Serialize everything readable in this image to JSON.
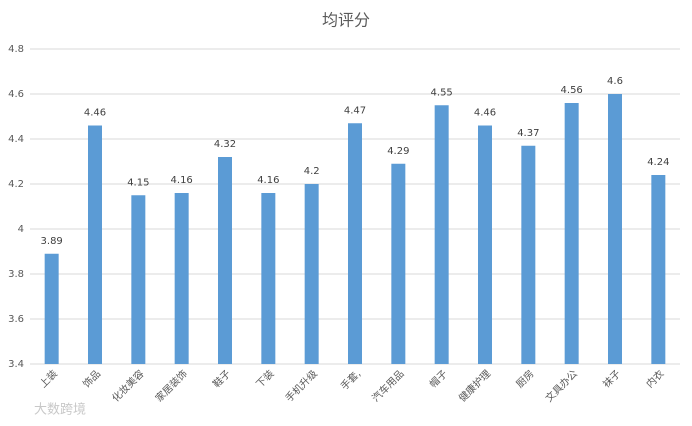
{
  "chart_data": {
    "type": "bar",
    "title": "均评分",
    "categories": [
      "上装",
      "饰品",
      "化妆美容",
      "家居装饰",
      "鞋子",
      "下装",
      "手机升级",
      "手套,",
      "汽车用品",
      "帽子",
      "健康护理",
      "厨房",
      "文具办公",
      "袜子",
      "内衣"
    ],
    "values": [
      3.89,
      4.46,
      4.15,
      4.16,
      4.32,
      4.16,
      4.2,
      4.47,
      4.29,
      4.55,
      4.46,
      4.37,
      4.56,
      4.6,
      4.24
    ],
    "color": "#5b9bd5",
    "ylim": [
      3.4,
      4.8
    ],
    "yticks": [
      3.4,
      3.6,
      3.8,
      4,
      4.2,
      4.4,
      4.6,
      4.8
    ],
    "grid": true,
    "watermark": "大数跨境"
  }
}
